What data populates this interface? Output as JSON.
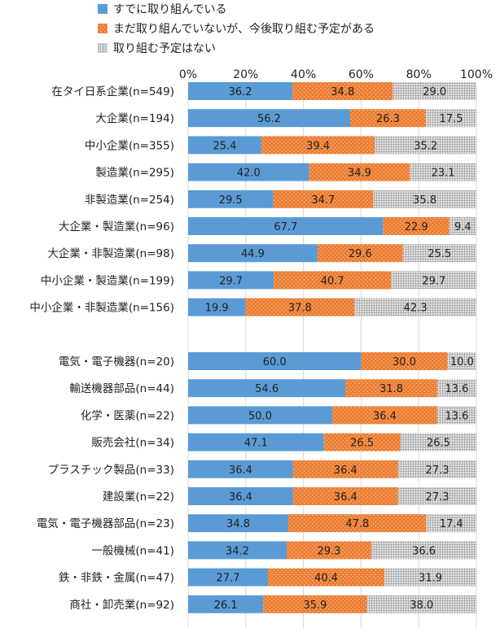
{
  "chart_data": {
    "type": "bar",
    "orientation": "horizontal",
    "stacked": true,
    "normalized_percent": true,
    "legend_position": "top",
    "xlim": [
      0,
      100
    ],
    "x_ticks": [
      "0%",
      "20%",
      "40%",
      "60%",
      "80%",
      "100%"
    ],
    "series": [
      {
        "name": "すでに取り組んでいる",
        "color": "#5b9bd5",
        "pattern": "solid",
        "values": [
          36.2,
          56.2,
          25.4,
          42.0,
          29.5,
          67.7,
          44.9,
          29.7,
          19.9,
          60.0,
          54.6,
          50.0,
          47.1,
          36.4,
          36.4,
          34.8,
          34.2,
          27.7,
          26.1
        ],
        "labels": [
          "36.2",
          "56.2",
          "25.4",
          "42.0",
          "29.5",
          "67.7",
          "44.9",
          "29.7",
          "19.9",
          "60.0",
          "54.6",
          "50.0",
          "47.1",
          "36.4",
          "36.4",
          "34.8",
          "34.2",
          "27.7",
          "26.1"
        ]
      },
      {
        "name": "まだ取り組んでいないが、今後取り組む予定がある",
        "color": "#ed7d31",
        "pattern": "dots",
        "values": [
          34.8,
          26.3,
          39.4,
          34.9,
          34.7,
          22.9,
          29.6,
          40.7,
          37.8,
          30.0,
          31.8,
          36.4,
          26.5,
          36.4,
          36.4,
          47.8,
          29.3,
          40.4,
          35.9
        ],
        "labels": [
          "34.8",
          "26.3",
          "39.4",
          "34.9",
          "34.7",
          "22.9",
          "29.6",
          "40.7",
          "37.8",
          "30.0",
          "31.8",
          "36.4",
          "26.5",
          "36.4",
          "36.4",
          "47.8",
          "29.3",
          "40.4",
          "35.9"
        ]
      },
      {
        "name": "取り組む予定はない",
        "color": "#bfbfbf",
        "pattern": "grid",
        "values": [
          29.0,
          17.5,
          35.2,
          23.1,
          35.8,
          9.4,
          25.5,
          29.7,
          42.3,
          10.0,
          13.6,
          13.6,
          26.5,
          27.3,
          27.3,
          17.4,
          36.6,
          31.9,
          38.0
        ],
        "labels": [
          "29.0",
          "17.5",
          "35.2",
          "23.1",
          "35.8",
          "9.4",
          "25.5",
          "29.7",
          "42.3",
          "10.0",
          "13.6",
          "13.6",
          "26.5",
          "27.3",
          "27.3",
          "17.4",
          "36.6",
          "31.9",
          "38.0"
        ]
      }
    ],
    "groups": [
      {
        "categories": [
          "在タイ日系企業(n=549)",
          "大企業(n=194)",
          "中小企業(n=355)",
          "製造業(n=295)",
          "非製造業(n=254)",
          "大企業・製造業(n=96)",
          "大企業・非製造業(n=98)",
          "中小企業・製造業(n=199)",
          "中小企業・非製造業(n=156)"
        ]
      },
      {
        "categories": [
          "電気・電子機器(n=20)",
          "輸送機器部品(n=44)",
          "化学・医薬(n=22)",
          "販売会社(n=34)",
          "プラスチック製品(n=33)",
          "建設業(n=22)",
          "電気・電子機器部品(n=23)",
          "一般機械(n=41)",
          "鉄・非鉄・金属(n=47)",
          "商社・卸売業(n=92)"
        ]
      }
    ]
  }
}
